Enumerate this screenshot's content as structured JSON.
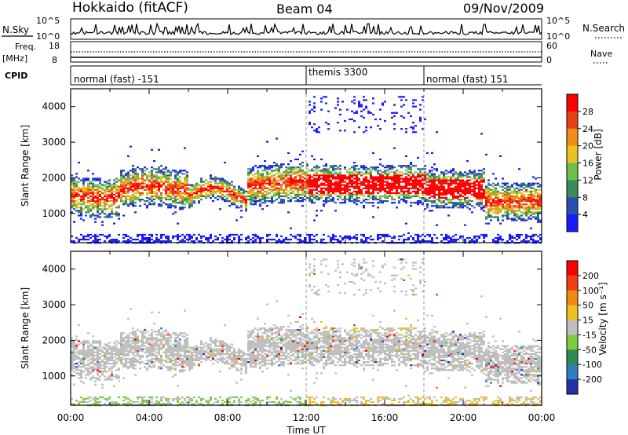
{
  "header": {
    "station": "Hokkaido (fitACF)",
    "beam": "Beam 04",
    "date": "09/Nov/2009"
  },
  "top_panels": {
    "nsky_label": "N.Sky",
    "nsky_ticks": [
      "10^5",
      "10^0"
    ],
    "nsearch_label": "N.Search",
    "nsearch_ticks": [
      "10^5",
      "10^0"
    ],
    "freq_label_1": "Freq.",
    "freq_label_2": "[MHz]",
    "freq_ticks": [
      "18",
      "8"
    ],
    "nave_label": "Nave",
    "nave_ticks": [
      "60",
      "0"
    ],
    "cpid_label": "CPID",
    "cpid_segments": [
      {
        "label": "normal (fast) -151",
        "start": 0,
        "end": 12
      },
      {
        "label": "themis 3300",
        "start": 12,
        "end": 18
      },
      {
        "label": "normal (fast) 151",
        "start": 18,
        "end": 24
      }
    ]
  },
  "chart_data": [
    {
      "type": "heatmap",
      "name": "power",
      "xlabel": "Time UT",
      "ylabel": "Slant Range [km]",
      "xlim": [
        0,
        24
      ],
      "ylim": [
        180,
        4500
      ],
      "x_ticks": [
        "00:00",
        "04:00",
        "08:00",
        "12:00",
        "16:00",
        "20:00",
        "00:00"
      ],
      "y_ticks": [
        1000,
        2000,
        3000,
        4000
      ],
      "colorbar_label": "Power [dB]",
      "colorbar_ticks": [
        4,
        8,
        12,
        16,
        20,
        24,
        28
      ],
      "colorbar_range": [
        0,
        32
      ],
      "colorbar_colors": [
        "#1a1aff",
        "#2a4fb0",
        "#3d8a5e",
        "#6cc04a",
        "#e8c41c",
        "#f08c1a",
        "#e8401a",
        "#ff0000"
      ],
      "grid": false
    },
    {
      "type": "heatmap",
      "name": "velocity",
      "xlabel": "Time UT",
      "ylabel": "Slant Range [km]",
      "xlim": [
        0,
        24
      ],
      "ylim": [
        180,
        4500
      ],
      "x_ticks": [
        "00:00",
        "04:00",
        "08:00",
        "12:00",
        "16:00",
        "20:00",
        "00:00"
      ],
      "y_ticks": [
        1000,
        2000,
        3000,
        4000
      ],
      "colorbar_label": "Velocity [m s⁻¹]",
      "colorbar_ticks": [
        200,
        100,
        50,
        15,
        -15,
        -50,
        -100,
        -200
      ],
      "colorbar_colors": [
        "#2233aa",
        "#2f7fbf",
        "#2e8b57",
        "#7ccc3c",
        "#bebebe",
        "#f0c020",
        "#f08a10",
        "#f04010",
        "#ff0000"
      ],
      "grid": false
    }
  ],
  "colors": {
    "ground_scatter": "#bebebe",
    "axis": "#000000",
    "dashed_lines": "#999999"
  }
}
